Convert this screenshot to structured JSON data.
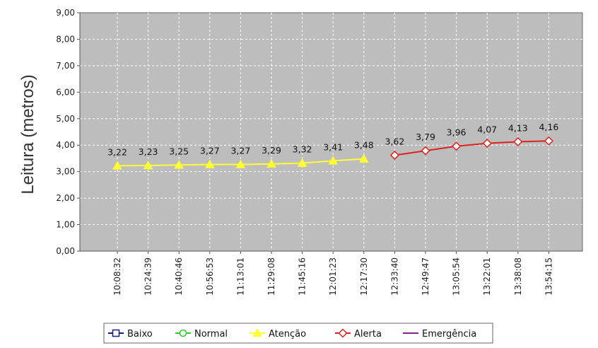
{
  "chart_data": {
    "type": "line",
    "xlabel": "",
    "ylabel": "Leitura (metros)",
    "ylim": [
      0,
      9
    ],
    "yticks": [
      "0,00",
      "1,00",
      "2,00",
      "3,00",
      "4,00",
      "5,00",
      "6,00",
      "7,00",
      "8,00",
      "9,00"
    ],
    "grid": true,
    "legend_position": "bottom",
    "categories": [
      "10:08:32",
      "10:24:39",
      "10:40:46",
      "10:56:53",
      "11:13:01",
      "11:29:08",
      "11:45:16",
      "12:01:23",
      "12:17:30",
      "12:33:40",
      "12:49:47",
      "13:05:54",
      "13:22:01",
      "13:38:08",
      "13:54:15"
    ],
    "series": [
      {
        "name": "Baixo",
        "color": "#1a1a8c",
        "marker": "square",
        "points": []
      },
      {
        "name": "Normal",
        "color": "#33cc33",
        "marker": "circle",
        "points": []
      },
      {
        "name": "Atenção",
        "color": "#ffff33",
        "marker": "triangle",
        "points": [
          {
            "x": "10:08:32",
            "y": 3.22,
            "label": "3,22"
          },
          {
            "x": "10:24:39",
            "y": 3.23,
            "label": "3,23"
          },
          {
            "x": "10:40:46",
            "y": 3.25,
            "label": "3,25"
          },
          {
            "x": "10:56:53",
            "y": 3.27,
            "label": "3,27"
          },
          {
            "x": "11:13:01",
            "y": 3.27,
            "label": "3,27"
          },
          {
            "x": "11:29:08",
            "y": 3.29,
            "label": "3,29"
          },
          {
            "x": "11:45:16",
            "y": 3.32,
            "label": "3,32"
          },
          {
            "x": "12:01:23",
            "y": 3.41,
            "label": "3,41"
          },
          {
            "x": "12:17:30",
            "y": 3.48,
            "label": "3,48"
          }
        ]
      },
      {
        "name": "Alerta",
        "color": "#dd2222",
        "marker": "diamond",
        "points": [
          {
            "x": "12:33:40",
            "y": 3.62,
            "label": "3,62"
          },
          {
            "x": "12:49:47",
            "y": 3.79,
            "label": "3,79"
          },
          {
            "x": "13:05:54",
            "y": 3.96,
            "label": "3,96"
          },
          {
            "x": "13:22:01",
            "y": 4.07,
            "label": "4,07"
          },
          {
            "x": "13:38:08",
            "y": 4.13,
            "label": "4,13"
          },
          {
            "x": "13:54:15",
            "y": 4.16,
            "label": "4,16"
          }
        ]
      },
      {
        "name": "Emergência",
        "color": "#882288",
        "marker": "line",
        "points": []
      }
    ]
  },
  "colors": {
    "plot_background": "#bdbdbd",
    "grid": "#ffffff",
    "axis": "#555555"
  }
}
